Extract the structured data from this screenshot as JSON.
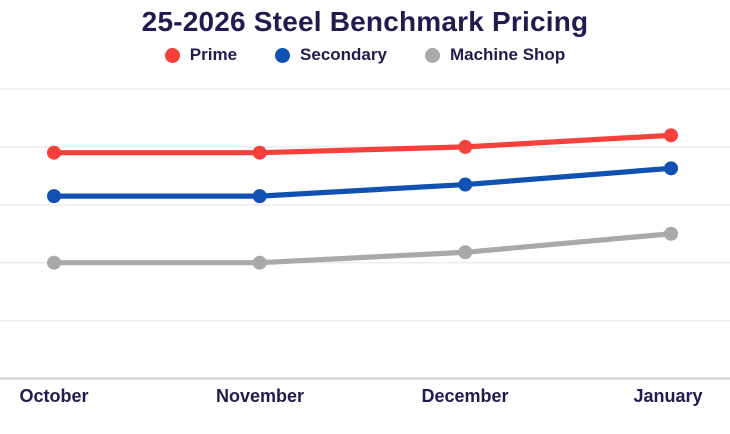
{
  "header": {
    "title": "25-2026 Steel Benchmark Pricing"
  },
  "legend": {
    "items": [
      {
        "label": "Prime",
        "color": "#f6403c"
      },
      {
        "label": "Secondary",
        "color": "#1151b2"
      },
      {
        "label": "Machine Shop",
        "color": "#a9a9a9"
      }
    ]
  },
  "chart_data": {
    "type": "line",
    "title": "25-2026 Steel Benchmark Pricing",
    "categories": [
      "October",
      "November",
      "December",
      "January"
    ],
    "series": [
      {
        "name": "Prime",
        "color": "#f6403c",
        "values": [
          3.9,
          3.9,
          4.0,
          4.2
        ]
      },
      {
        "name": "Secondary",
        "color": "#1151b2",
        "values": [
          3.15,
          3.15,
          3.35,
          3.63
        ]
      },
      {
        "name": "Machine Shop",
        "color": "#a9a9a9",
        "values": [
          2.0,
          2.0,
          2.18,
          2.5
        ]
      }
    ],
    "xlabel": "",
    "ylabel": "",
    "ylim": [
      0,
      5
    ],
    "units": "gridline-intervals above baseline (no y-axis tick labels visible)",
    "grid": "horizontal-only",
    "legend_position": "top-center",
    "marker": "filled-circle"
  },
  "style": {
    "background": "#ffffff",
    "text_color": "#221b4f",
    "gridline_color": "#ededf0",
    "axis_line_color": "#d6d6dc"
  }
}
